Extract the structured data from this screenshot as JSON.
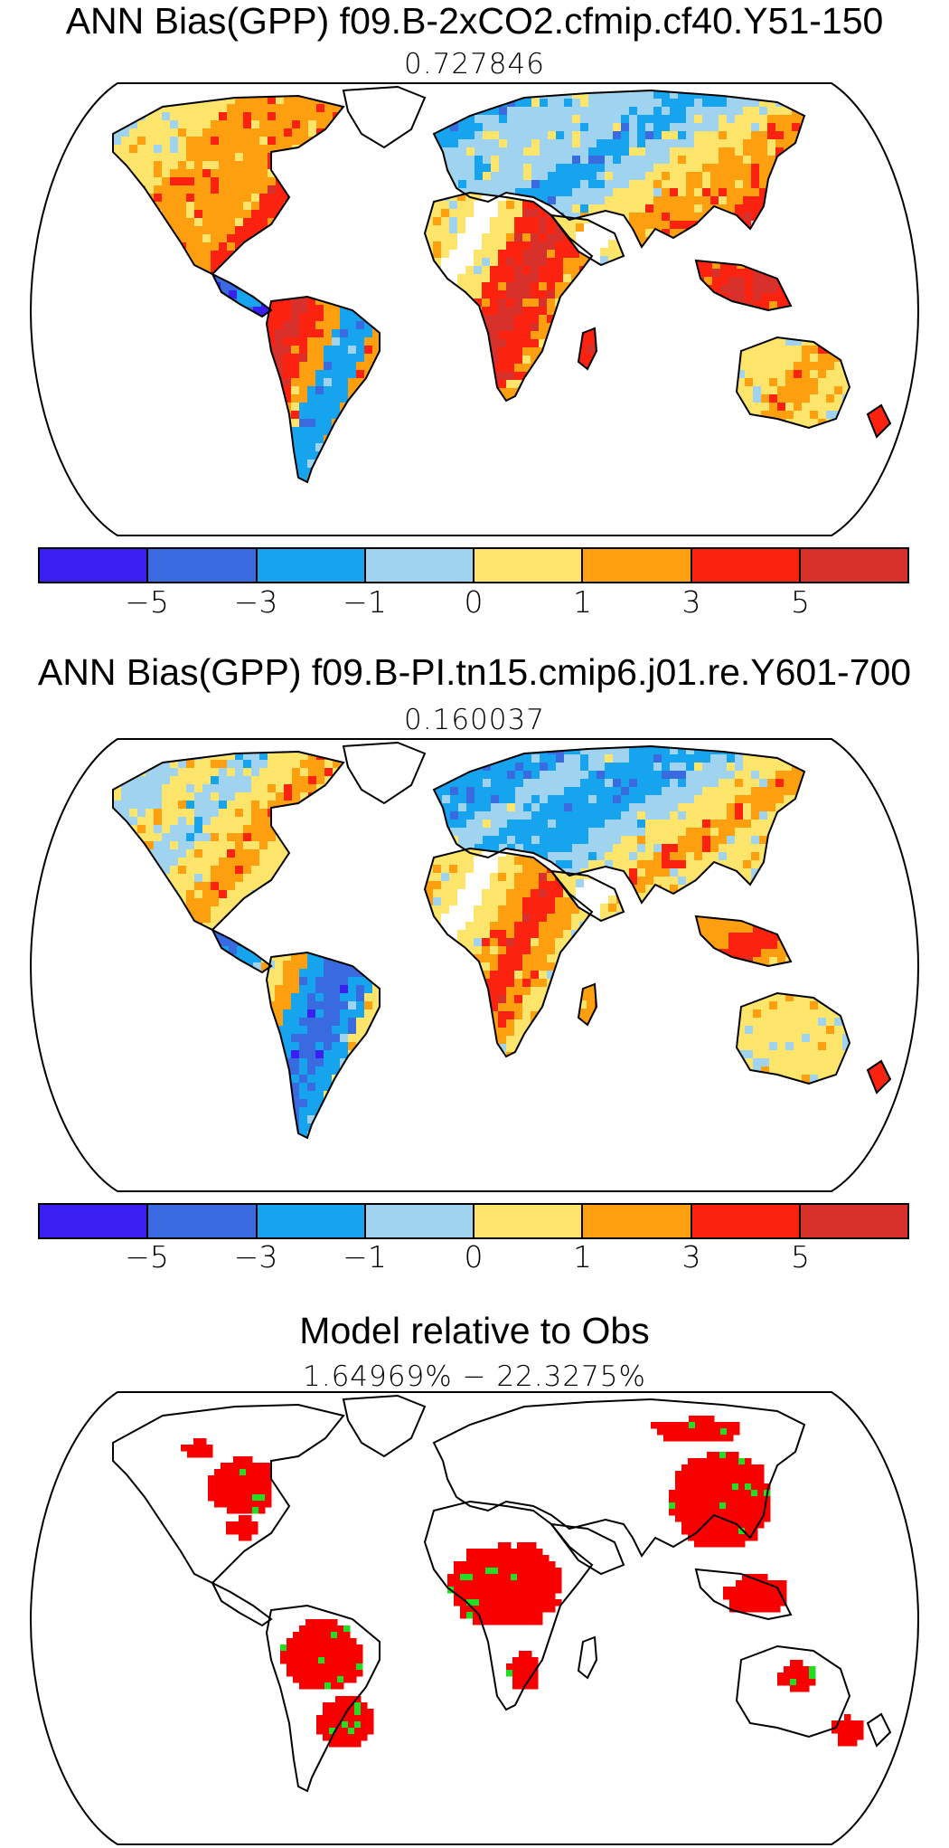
{
  "panels": [
    {
      "title": "ANN Bias(GPP) f09.B-2xCO2.cfmip.cf40.Y51-150",
      "subtitle": "0.727846"
    },
    {
      "title": "ANN Bias(GPP) f09.B-PI.tn15.cmip6.j01.re.Y601-700",
      "subtitle": "0.160037"
    },
    {
      "title": "Model relative to Obs",
      "subtitle": "1.64969% − 22.3275%"
    }
  ],
  "colorbar": {
    "colors": [
      "#3a1ff0",
      "#3a6ae0",
      "#16a4ef",
      "#9fd3ef",
      "#fde46a",
      "#fd9f0f",
      "#fb2210",
      "#d8312b"
    ],
    "labels": [
      "−5",
      "−3",
      "−1",
      "0",
      "1",
      "3",
      "5"
    ]
  },
  "relative_map_colors": {
    "worse": "#f80000",
    "better": "#22dd22"
  }
}
